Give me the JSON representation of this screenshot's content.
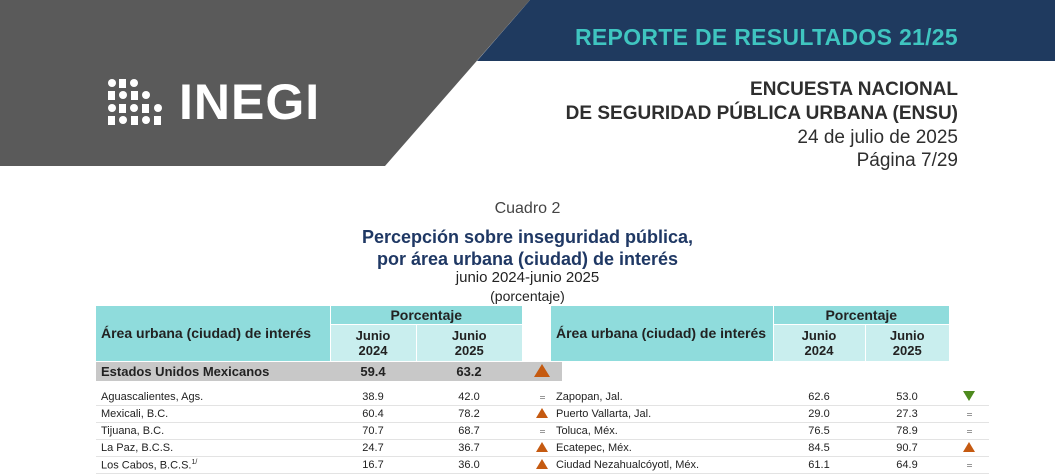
{
  "header": {
    "logo_text": "INEGI",
    "report_label": "REPORTE DE RESULTADOS 21/25",
    "survey_line1": "ENCUESTA NACIONAL",
    "survey_line2": "DE SEGURIDAD PÚBLICA URBANA (ENSU)",
    "date": "24 de julio de 2025",
    "page": "Página 7/29",
    "colors": {
      "gray": "#5a5a5a",
      "navy": "#1f3a5f",
      "teal": "#3fc5c0"
    }
  },
  "caption": {
    "cuadro": "Cuadro 2",
    "title_line1": "Percepción sobre inseguridad pública,",
    "title_line2": "por área urbana (ciudad) de interés",
    "period": "junio 2024-junio 2025",
    "unit": "(porcentaje)"
  },
  "table_header": {
    "area_label": "Área urbana (ciudad) de interés",
    "pct_label": "Porcentaje",
    "col1_month": "Junio",
    "col1_year": "2024",
    "col2_month": "Junio",
    "col2_year": "2025"
  },
  "national": {
    "name": "Estados Unidos Mexicanos",
    "v2024": "59.4",
    "v2025": "63.2",
    "trend": "up"
  },
  "left_rows": [
    {
      "name": "Aguascalientes, Ags.",
      "sup": "",
      "v2024": "38.9",
      "v2025": "42.0",
      "trend": "equal"
    },
    {
      "name": "Mexicali, B.C.",
      "sup": "",
      "v2024": "60.4",
      "v2025": "78.2",
      "trend": "up"
    },
    {
      "name": "Tijuana, B.C.",
      "sup": "",
      "v2024": "70.7",
      "v2025": "68.7",
      "trend": "equal"
    },
    {
      "name": "La Paz, B.C.S.",
      "sup": "",
      "v2024": "24.7",
      "v2025": "36.7",
      "trend": "up"
    },
    {
      "name": "Los Cabos, B.C.S.",
      "sup": "1/",
      "v2024": "16.7",
      "v2025": "36.0",
      "trend": "up"
    }
  ],
  "right_rows": [
    {
      "name": "Zapopan, Jal.",
      "v2024": "62.6",
      "v2025": "53.0",
      "trend": "down"
    },
    {
      "name": "Puerto Vallarta, Jal.",
      "v2024": "29.0",
      "v2025": "27.3",
      "trend": "equal"
    },
    {
      "name": "Toluca, Méx.",
      "v2024": "76.5",
      "v2025": "78.9",
      "trend": "equal"
    },
    {
      "name": "Ecatepec, Méx.",
      "v2024": "84.5",
      "v2025": "90.7",
      "trend": "up"
    },
    {
      "name": "Ciudad Nezahualcóyotl, Méx.",
      "v2024": "61.1",
      "v2025": "64.9",
      "trend": "equal"
    }
  ]
}
